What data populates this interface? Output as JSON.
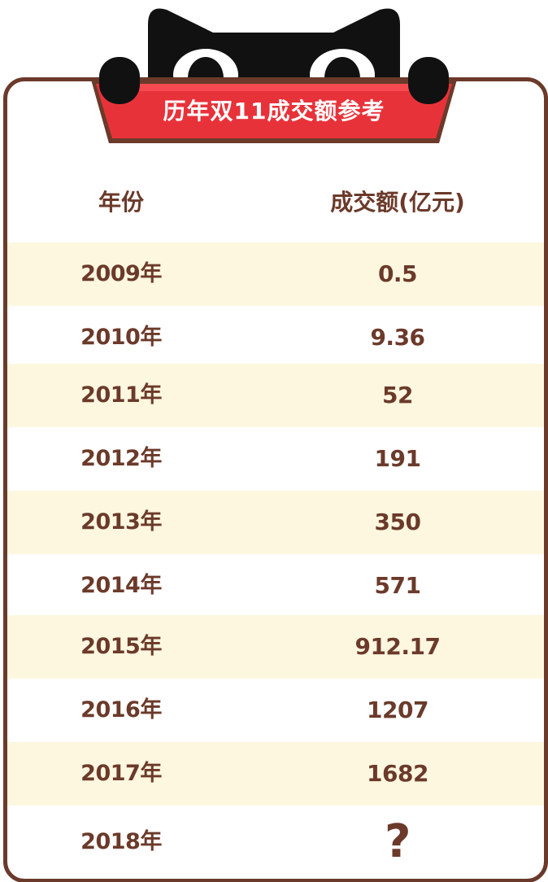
{
  "title": "历年双11成交额参考",
  "table": {
    "headers": {
      "year": "年份",
      "amount": "成交额(亿元)"
    },
    "rows": [
      {
        "year": "2009年",
        "amount": "0.5"
      },
      {
        "year": "2010年",
        "amount": "9.36"
      },
      {
        "year": "2011年",
        "amount": "52"
      },
      {
        "year": "2012年",
        "amount": "191"
      },
      {
        "year": "2013年",
        "amount": "350"
      },
      {
        "year": "2014年",
        "amount": "571"
      },
      {
        "year": "2015年",
        "amount": "912.17"
      },
      {
        "year": "2016年",
        "amount": "1207"
      },
      {
        "year": "2017年",
        "amount": "1682"
      },
      {
        "year": "2018年",
        "amount": "?"
      }
    ]
  },
  "colors": {
    "border": "#6b3a2a",
    "text": "#6b3a2a",
    "row_alt": "#fdf7e0",
    "banner_red": "#e8323a",
    "cat_black": "#111111"
  },
  "decor": {
    "mascot": "tmall-cat-icon"
  }
}
